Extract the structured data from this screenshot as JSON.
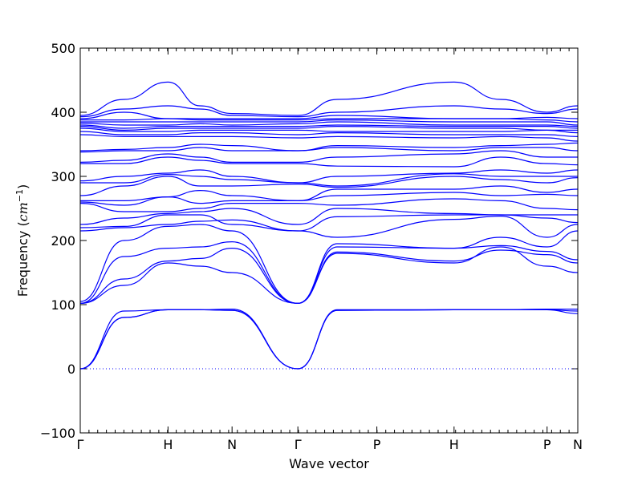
{
  "chart_data": {
    "type": "line",
    "xlabel": "Wave vector",
    "ylabel_text": "Frequency (",
    "ylabel_unit_base": "cm",
    "ylabel_unit_exp": "−1",
    "ylabel_close": ")",
    "ylim": [
      -100,
      500
    ],
    "yticks": [
      -100,
      0,
      100,
      200,
      300,
      400,
      500
    ],
    "ytick_labels": [
      "−100",
      "0",
      "100",
      "200",
      "300",
      "400",
      "500"
    ],
    "xlim": [
      0,
      5.67
    ],
    "xticks": [
      0,
      1.0,
      1.73,
      2.48,
      3.38,
      4.26,
      5.32,
      5.67
    ],
    "xtick_labels": [
      "Γ",
      "H",
      "N",
      "Γ",
      "P",
      "H",
      "P",
      "N"
    ],
    "minor_tick_count_per_unit": 10,
    "zero_line": true,
    "series_color": "#0000ff",
    "band_groups": [
      {
        "segments": "acoustic",
        "bands": [
          [
            0,
            80,
            92,
            92,
            90,
            0,
            91,
            92,
            92,
            92
          ],
          [
            0,
            80,
            92,
            92,
            90,
            0,
            91,
            92,
            92,
            92
          ],
          [
            0,
            92,
            92,
            92,
            95,
            0,
            92,
            92,
            92,
            92
          ]
        ]
      }
    ],
    "bands": [
      [
        0,
        80,
        92,
        92,
        91,
        0,
        91,
        92,
        92,
        92,
        86
      ],
      [
        0,
        80,
        92,
        92,
        91,
        0,
        91,
        92,
        92,
        92,
        90
      ],
      [
        0,
        90,
        92,
        92,
        93,
        0,
        92,
        92,
        92,
        93,
        93
      ],
      [
        102,
        130,
        165,
        160,
        150,
        102,
        180,
        165,
        190,
        160,
        150
      ],
      [
        102,
        140,
        168,
        172,
        188,
        102,
        182,
        168,
        185,
        178,
        165
      ],
      [
        102,
        175,
        188,
        190,
        198,
        102,
        190,
        188,
        192,
        183,
        170
      ],
      [
        105,
        200,
        222,
        225,
        215,
        102,
        195,
        188,
        205,
        190,
        215
      ],
      [
        215,
        220,
        225,
        230,
        232,
        215,
        205,
        233,
        238,
        205,
        225
      ],
      [
        220,
        222,
        240,
        240,
        225,
        215,
        237,
        240,
        240,
        235,
        228
      ],
      [
        225,
        235,
        242,
        245,
        250,
        225,
        250,
        242,
        240,
        240,
        240
      ],
      [
        258,
        245,
        245,
        250,
        258,
        258,
        255,
        265,
        262,
        250,
        248
      ],
      [
        260,
        255,
        268,
        258,
        262,
        262,
        270,
        275,
        270,
        272,
        270
      ],
      [
        262,
        262,
        268,
        278,
        270,
        262,
        280,
        280,
        285,
        275,
        280
      ],
      [
        270,
        285,
        300,
        285,
        285,
        288,
        283,
        300,
        295,
        290,
        298
      ],
      [
        290,
        290,
        303,
        300,
        295,
        290,
        285,
        304,
        300,
        300,
        300
      ],
      [
        293,
        300,
        305,
        310,
        300,
        290,
        300,
        305,
        310,
        305,
        310
      ],
      [
        320,
        320,
        330,
        325,
        320,
        320,
        316,
        315,
        330,
        320,
        318
      ],
      [
        322,
        325,
        335,
        330,
        322,
        322,
        330,
        335,
        340,
        330,
        330
      ],
      [
        338,
        340,
        340,
        345,
        340,
        340,
        345,
        340,
        345,
        345,
        340
      ],
      [
        340,
        342,
        345,
        350,
        348,
        340,
        348,
        345,
        348,
        350,
        352
      ],
      [
        365,
        362,
        362,
        362,
        362,
        360,
        362,
        360,
        362,
        360,
        355
      ],
      [
        370,
        365,
        365,
        368,
        368,
        365,
        368,
        365,
        365,
        365,
        362
      ],
      [
        375,
        370,
        370,
        372,
        372,
        372,
        370,
        370,
        370,
        372,
        368
      ],
      [
        378,
        372,
        375,
        375,
        375,
        375,
        378,
        375,
        375,
        372,
        372
      ],
      [
        380,
        375,
        378,
        378,
        378,
        378,
        380,
        378,
        378,
        378,
        375
      ],
      [
        383,
        380,
        380,
        382,
        380,
        382,
        385,
        380,
        380,
        380,
        378
      ],
      [
        385,
        385,
        385,
        385,
        385,
        385,
        388,
        385,
        385,
        385,
        380
      ],
      [
        388,
        388,
        390,
        388,
        388,
        388,
        390,
        390,
        390,
        388,
        385
      ],
      [
        390,
        400,
        390,
        390,
        390,
        390,
        395,
        390,
        390,
        392,
        390
      ],
      [
        393,
        405,
        410,
        405,
        395,
        393,
        400,
        410,
        405,
        398,
        405
      ],
      [
        395,
        420,
        447,
        410,
        398,
        395,
        420,
        447,
        420,
        400,
        410
      ]
    ]
  }
}
